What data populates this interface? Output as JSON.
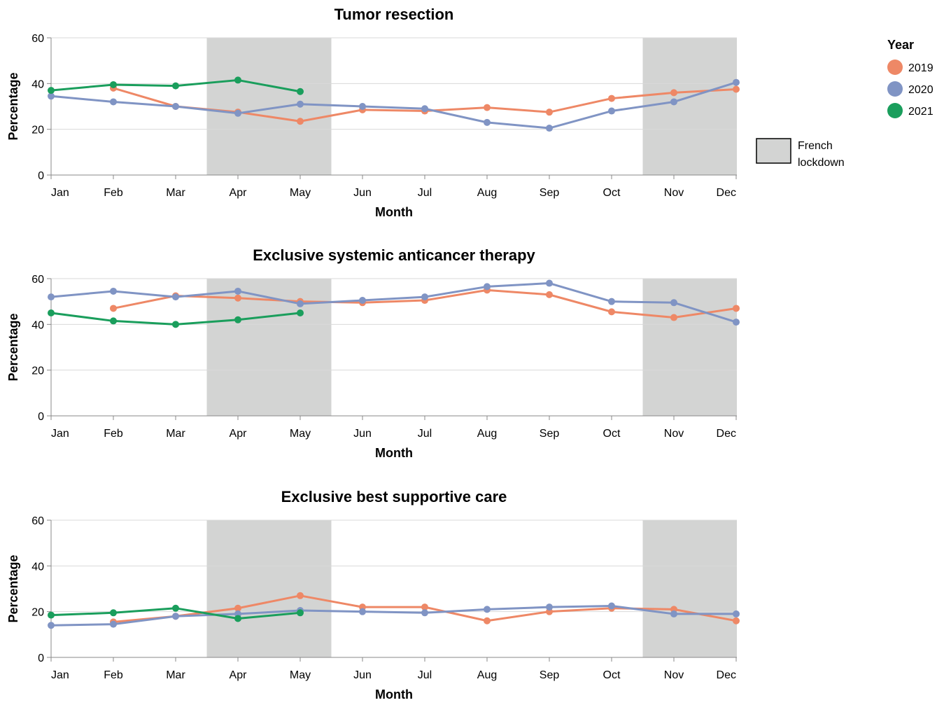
{
  "chart_data": [
    {
      "type": "line",
      "title": "Tumor resection",
      "xlabel": "Month",
      "ylabel": "Percentage",
      "ylim": [
        0,
        60
      ],
      "yticks": [
        "0",
        "20",
        "40",
        "60"
      ],
      "categories": [
        "Jan",
        "Feb",
        "Mar",
        "Apr",
        "May",
        "Jun",
        "Jul",
        "Aug",
        "Sep",
        "Oct",
        "Nov",
        "Dec"
      ],
      "grid": true,
      "series": [
        {
          "name": "2019",
          "values": [
            null,
            38,
            30,
            27.5,
            23.5,
            28.5,
            28,
            29.5,
            27.5,
            33.5,
            36,
            37.5
          ]
        },
        {
          "name": "2020",
          "values": [
            34.5,
            32,
            30,
            27,
            31,
            30,
            29,
            23,
            20.5,
            28,
            32,
            40.5
          ]
        },
        {
          "name": "2021",
          "values": [
            37,
            39.5,
            39,
            41.5,
            36.5,
            null,
            null,
            null,
            null,
            null,
            null,
            null
          ]
        }
      ],
      "lockdowns": [
        [
          "Mar",
          "May"
        ],
        [
          "Oct",
          "Dec"
        ]
      ]
    },
    {
      "type": "line",
      "title": "Exclusive systemic anticancer therapy",
      "xlabel": "Month",
      "ylabel": "Percentage",
      "ylim": [
        0,
        60
      ],
      "yticks": [
        "0",
        "20",
        "40",
        "60"
      ],
      "categories": [
        "Jan",
        "Feb",
        "Mar",
        "Apr",
        "May",
        "Jun",
        "Jul",
        "Aug",
        "Sep",
        "Oct",
        "Nov",
        "Dec"
      ],
      "grid": true,
      "series": [
        {
          "name": "2019",
          "values": [
            null,
            47,
            52.5,
            51.5,
            50,
            49.5,
            50.5,
            55,
            53,
            45.5,
            43,
            47
          ]
        },
        {
          "name": "2020",
          "values": [
            52,
            54.5,
            52,
            54.5,
            49,
            50.5,
            52,
            56.5,
            58,
            50,
            49.5,
            41
          ]
        },
        {
          "name": "2021",
          "values": [
            45,
            41.5,
            40,
            42,
            45,
            null,
            null,
            null,
            null,
            null,
            null,
            null
          ]
        }
      ],
      "lockdowns": [
        [
          "Mar",
          "May"
        ],
        [
          "Oct",
          "Dec"
        ]
      ]
    },
    {
      "type": "line",
      "title": "Exclusive best supportive care",
      "xlabel": "Month",
      "ylabel": "Percentage",
      "ylim": [
        0,
        60
      ],
      "yticks": [
        "0",
        "20",
        "40",
        "60"
      ],
      "categories": [
        "Jan",
        "Feb",
        "Mar",
        "Apr",
        "May",
        "Jun",
        "Jul",
        "Aug",
        "Sep",
        "Oct",
        "Nov",
        "Dec"
      ],
      "grid": true,
      "series": [
        {
          "name": "2019",
          "values": [
            null,
            15.5,
            18,
            21.5,
            27,
            22,
            22,
            16,
            20,
            21.5,
            21,
            16
          ]
        },
        {
          "name": "2020",
          "values": [
            14,
            14.5,
            18,
            19,
            20.5,
            20,
            19.5,
            21,
            22,
            22.5,
            19,
            19
          ]
        },
        {
          "name": "2021",
          "values": [
            18.5,
            19.5,
            21.5,
            17,
            19.5,
            null,
            null,
            null,
            null,
            null,
            null,
            null
          ]
        }
      ],
      "lockdowns": [
        [
          "Mar",
          "May"
        ],
        [
          "Oct",
          "Dec"
        ]
      ]
    }
  ],
  "legend": {
    "title": "Year",
    "placement": "right",
    "items": [
      {
        "label": "2019",
        "color": "#ee8866"
      },
      {
        "label": "2020",
        "color": "#8094c4"
      },
      {
        "label": "2021",
        "color": "#1a9e5c"
      }
    ],
    "lockdown_label_lines": [
      "French",
      "lockdown"
    ],
    "lockdown_color": "#d3d4d3"
  }
}
